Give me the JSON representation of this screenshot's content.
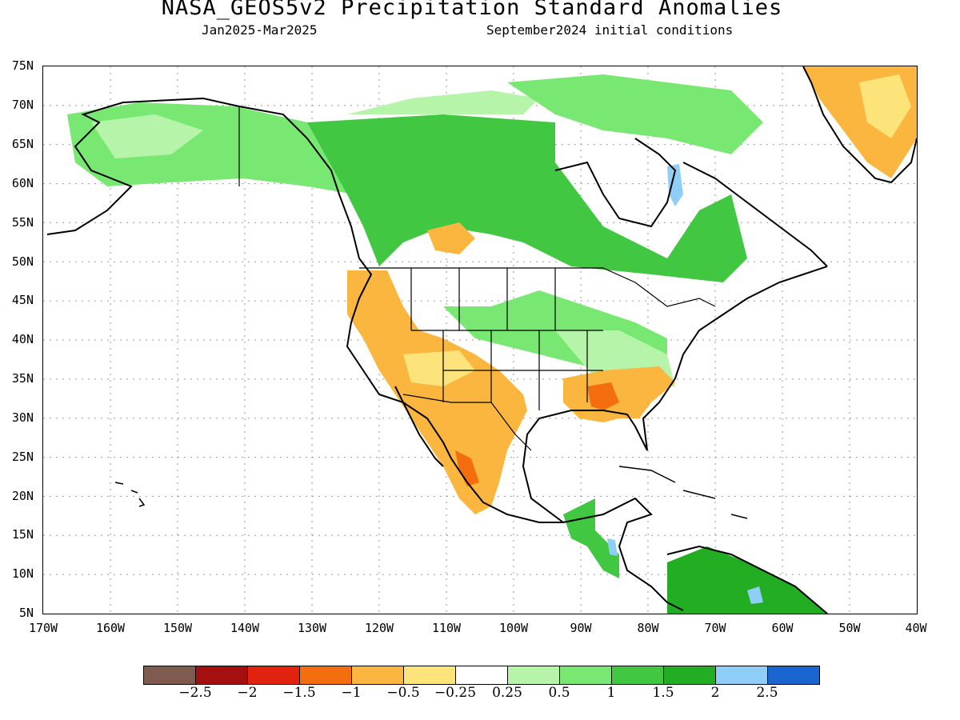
{
  "title": "NASA_GEOS5v2 Precipitation Standard Anomalies",
  "period": "Jan2025-Mar2025",
  "init": "September2024 initial conditions",
  "lat_labels": [
    "75N",
    "70N",
    "65N",
    "60N",
    "55N",
    "50N",
    "45N",
    "40N",
    "35N",
    "30N",
    "25N",
    "20N",
    "15N",
    "10N",
    "5N"
  ],
  "lon_labels": [
    "170W",
    "160W",
    "150W",
    "140W",
    "130W",
    "120W",
    "110W",
    "100W",
    "90W",
    "80W",
    "70W",
    "60W",
    "50W",
    "40W"
  ],
  "legend": {
    "colors": [
      "#7f5a4f",
      "#a50f0f",
      "#e2230f",
      "#f46d0e",
      "#fbb63f",
      "#fde47a",
      "#ffffff",
      "#b6f5a9",
      "#78e872",
      "#42c742",
      "#22ad22",
      "#8fcef6",
      "#1a66d1"
    ],
    "labels": [
      "-2.5",
      "-2",
      "-1.5",
      "-1",
      "-0.5",
      "-0.25",
      "0.25",
      "0.5",
      "1",
      "1.5",
      "2",
      "2.5"
    ]
  },
  "map_regions": [
    {
      "name": "alaska-wet",
      "color": "#78e872"
    },
    {
      "name": "canada-wet",
      "color": "#42c742"
    },
    {
      "name": "southwest-dry",
      "color": "#fbb63f"
    },
    {
      "name": "mexico-dry",
      "color": "#fbb63f"
    },
    {
      "name": "southeast-dry",
      "color": "#fbb63f"
    },
    {
      "name": "greenland-dry",
      "color": "#fbb63f"
    },
    {
      "name": "central-america-wet",
      "color": "#42c742"
    },
    {
      "name": "south-america-wet",
      "color": "#22ad22"
    }
  ]
}
